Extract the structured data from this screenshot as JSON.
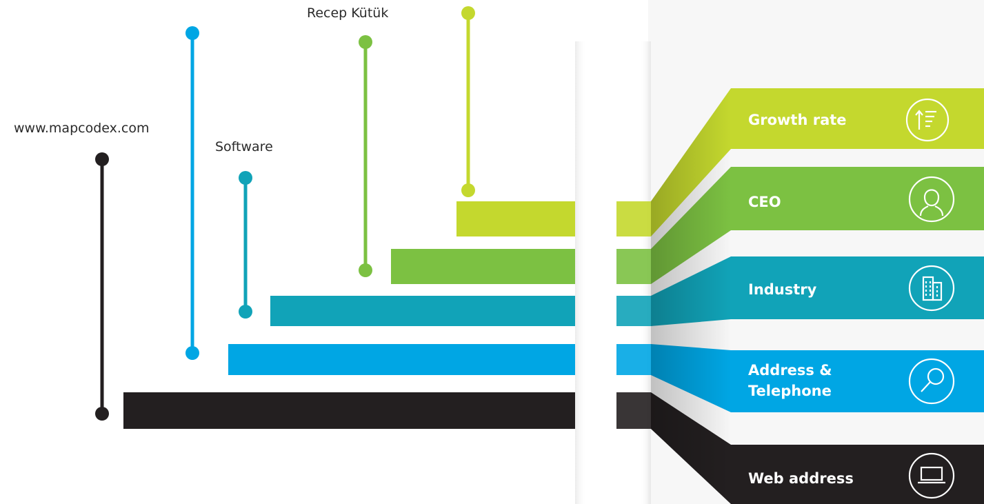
{
  "colors": {
    "black": "#231f20",
    "blue": "#00a6e4",
    "teal": "#11a3b8",
    "green": "#7cc142",
    "lime": "#c4d82e"
  },
  "labels": {
    "web": "www.mapcodex.com",
    "software": "Software",
    "ceo": "Recep Kütük"
  },
  "tabs": [
    {
      "id": "growth",
      "label": "Growth rate",
      "icon": "growth-rate-icon"
    },
    {
      "id": "ceo",
      "label": "CEO",
      "icon": "person-icon"
    },
    {
      "id": "industry",
      "label": "Industry",
      "icon": "building-icon"
    },
    {
      "id": "address",
      "label": "Address &",
      "label2": "Telephone",
      "icon": "magnifier-icon"
    },
    {
      "id": "web",
      "label": "Web address",
      "icon": "laptop-icon"
    }
  ]
}
